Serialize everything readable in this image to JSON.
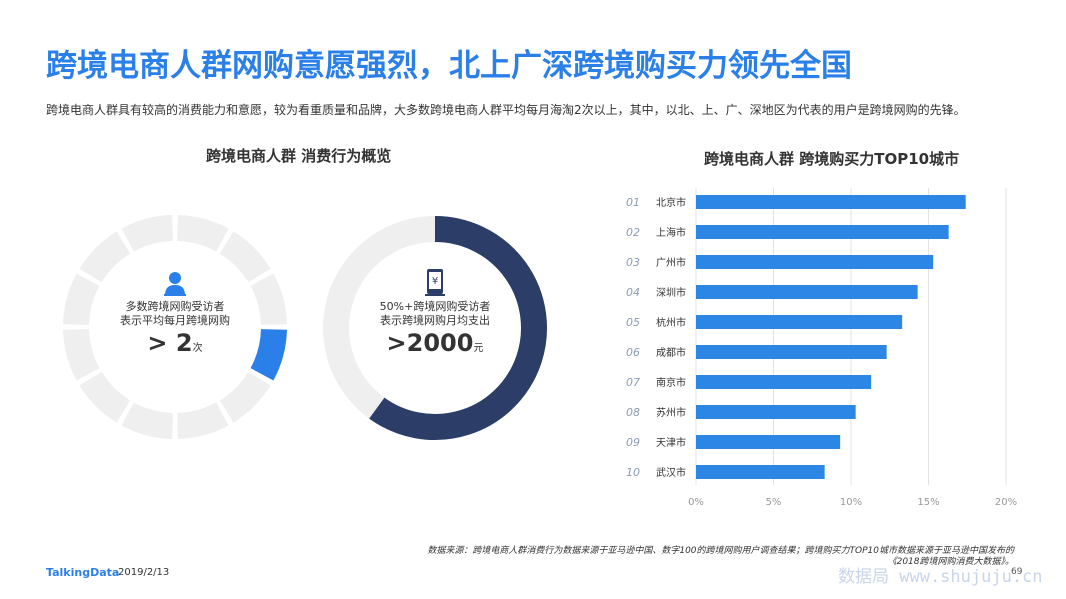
{
  "header": {
    "title": "跨境电商人群网购意愿强烈，北上广深跨境购买力领先全国",
    "subtitle": "跨境电商人群具有较高的消费能力和意愿，较为看重质量和品牌，大多数跨境电商人群平均每月海淘2次以上，其中，以北、上、广、深地区为代表的用户是跨境网购的先锋。"
  },
  "left_panel": {
    "title": "跨境电商人群  消费行为概览",
    "donut1": {
      "line1": "多数跨境网购受访者",
      "line2": "表示平均每月跨境网购",
      "prefix": ">",
      "value": "2",
      "unit": "次",
      "icon": "person-icon"
    },
    "donut2": {
      "line1": "50%+跨境网购受访者",
      "line2": "表示跨境网购月均支出",
      "prefix": ">",
      "value": "2000",
      "unit": "元",
      "icon": "phone-yen-icon"
    }
  },
  "right_panel": {
    "title": "跨境电商人群  跨境购买力TOP10城市"
  },
  "chart_data": {
    "type": "bar",
    "orientation": "horizontal",
    "ranks": [
      "01",
      "02",
      "03",
      "04",
      "05",
      "06",
      "07",
      "08",
      "09",
      "10"
    ],
    "categories": [
      "北京市",
      "上海市",
      "广州市",
      "深圳市",
      "杭州市",
      "成都市",
      "南京市",
      "苏州市",
      "天津市",
      "武汉市"
    ],
    "values": [
      17.4,
      16.3,
      15.3,
      14.3,
      13.3,
      12.3,
      11.3,
      10.3,
      9.3,
      8.3
    ],
    "xticks": [
      "0%",
      "5%",
      "10%",
      "15%",
      "20%"
    ],
    "xlim": [
      0,
      20
    ],
    "bar_color": "#2b86e6"
  },
  "footer": {
    "source": "数据来源：跨境电商人群消费行为数据来源于亚马逊中国、数字100的跨境网购用户调查结果；跨境购买力TOP10城市数据来源于亚马逊中国发布的《2018跨境网购消费大数据》。",
    "logo": "TalkingData",
    "date": "2019/2/13",
    "page": "69",
    "watermark": "数据局 www.shujuju.cn"
  },
  "colors": {
    "accent": "#2a80e8",
    "navy": "#2c3e68",
    "ring": "#efefef",
    "bar": "#2b86e6"
  }
}
